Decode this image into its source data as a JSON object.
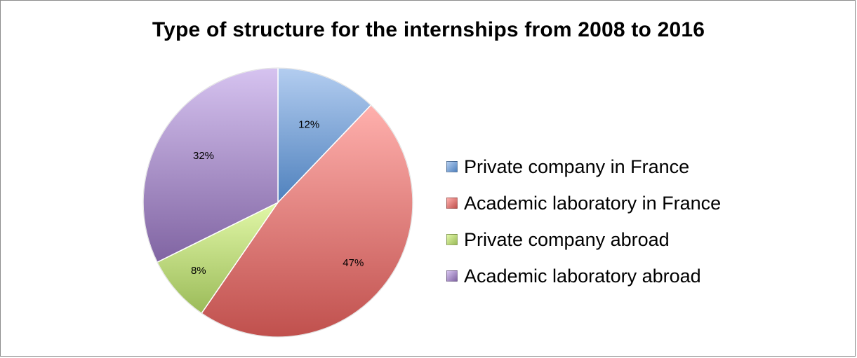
{
  "chart_data": {
    "type": "pie",
    "title": "Type of structure for the internships from 2008 to 2016",
    "legend_position": "right",
    "slices": [
      {
        "label": "Private company in France",
        "value": 12,
        "display": "12%",
        "color": "#4f81bd",
        "light": "#b3cdf0"
      },
      {
        "label": "Academic laboratory in France",
        "value": 47,
        "display": "47%",
        "color": "#c0504d",
        "light": "#ffb0ad"
      },
      {
        "label": "Private company abroad",
        "value": 8,
        "display": "8%",
        "color": "#9bbb59",
        "light": "#e2f8a8"
      },
      {
        "label": "Academic laboratory abroad",
        "value": 32,
        "display": "32%",
        "color": "#8064a2",
        "light": "#d6c3f0"
      }
    ]
  }
}
